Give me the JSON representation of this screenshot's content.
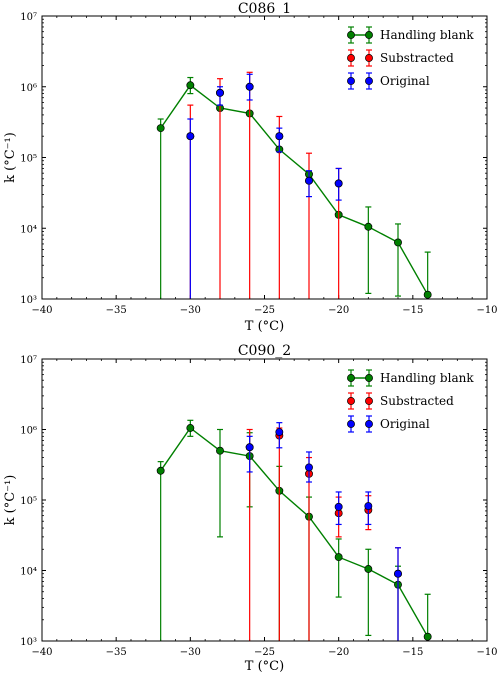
{
  "chart_data": [
    {
      "type": "line",
      "title": "C086_1",
      "xlabel": "T (°C)",
      "ylabel": "k (°C⁻¹)",
      "xlim": [
        -40,
        -10
      ],
      "ylim": [
        1000,
        10000000
      ],
      "y_scale": "log",
      "x_ticks": [
        "−40",
        "−35",
        "−30",
        "−25",
        "−20",
        "−15",
        "−10"
      ],
      "y_ticks": [
        "10³",
        "10⁴",
        "10⁵",
        "10⁶",
        "10⁷"
      ],
      "legend_position": "top-right",
      "series": [
        {
          "name": "Handling blank",
          "color": "#008000",
          "connected": true,
          "points": [
            {
              "x": -32,
              "y": 260000,
              "lo": 1,
              "hi": 350000
            },
            {
              "x": -30,
              "y": 1050000,
              "lo": 800000,
              "hi": 1350000
            },
            {
              "x": -28,
              "y": 500000
            },
            {
              "x": -26,
              "y": 420000
            },
            {
              "x": -24,
              "y": 130000
            },
            {
              "x": -22,
              "y": 58000
            },
            {
              "x": -20,
              "y": 15500
            },
            {
              "x": -18,
              "y": 10500,
              "lo": 1200,
              "hi": 20000
            },
            {
              "x": -16,
              "y": 6300,
              "lo": 1100,
              "hi": 11500
            },
            {
              "x": -14,
              "y": 1150,
              "lo": 1,
              "hi": 4600
            }
          ]
        },
        {
          "name": "Substracted",
          "color": "#ff0000",
          "connected": false,
          "points": [
            {
              "x": -30,
              "y": 200000,
              "lo": 1,
              "hi": 550000
            },
            {
              "x": -28,
              "y": 820000,
              "lo": 1,
              "hi": 1300000
            },
            {
              "x": -26,
              "y": 1000000,
              "lo": 1,
              "hi": 1600000
            },
            {
              "x": -24,
              "y": 200000,
              "lo": 1,
              "hi": 380000
            },
            {
              "x": -22,
              "y": 47000,
              "lo": 1,
              "hi": 115000
            },
            {
              "x": -20,
              "y": 43000,
              "lo": 1,
              "hi": 70000
            }
          ]
        },
        {
          "name": "Original",
          "color": "#0000ff",
          "connected": false,
          "points": [
            {
              "x": -30,
              "y": 200000,
              "lo": 1,
              "hi": 350000
            },
            {
              "x": -28,
              "y": 820000,
              "lo": 550000,
              "hi": 1000000
            },
            {
              "x": -26,
              "y": 1000000,
              "lo": 650000,
              "hi": 1500000
            },
            {
              "x": -24,
              "y": 200000,
              "lo": 120000,
              "hi": 260000
            },
            {
              "x": -22,
              "y": 47000,
              "lo": 28000,
              "hi": 65000
            },
            {
              "x": -20,
              "y": 43000,
              "lo": 25000,
              "hi": 70000
            }
          ]
        }
      ]
    },
    {
      "type": "line",
      "title": "C090_2",
      "xlabel": "T (°C)",
      "ylabel": "k (°C⁻¹)",
      "xlim": [
        -40,
        -10
      ],
      "ylim": [
        1000,
        10000000
      ],
      "y_scale": "log",
      "x_ticks": [
        "−40",
        "−35",
        "−30",
        "−25",
        "−20",
        "−15",
        "−10"
      ],
      "y_ticks": [
        "10³",
        "10⁴",
        "10⁵",
        "10⁶",
        "10⁷"
      ],
      "legend_position": "top-right",
      "series": [
        {
          "name": "Handling blank",
          "color": "#008000",
          "connected": true,
          "points": [
            {
              "x": -32,
              "y": 260000,
              "lo": 1,
              "hi": 350000
            },
            {
              "x": -30,
              "y": 1050000,
              "lo": 800000,
              "hi": 1350000
            },
            {
              "x": -28,
              "y": 500000,
              "lo": 30000,
              "hi": 1000000
            },
            {
              "x": -26,
              "y": 420000,
              "lo": 80000,
              "hi": 900000
            },
            {
              "x": -24,
              "y": 135000,
              "lo": 1,
              "hi": 300000
            },
            {
              "x": -22,
              "y": 58000,
              "lo": 1,
              "hi": 110000
            },
            {
              "x": -20,
              "y": 15500,
              "lo": 4200,
              "hi": 28000
            },
            {
              "x": -18,
              "y": 10500,
              "lo": 1200,
              "hi": 20000
            },
            {
              "x": -16,
              "y": 6300,
              "lo": 1,
              "hi": 11500
            },
            {
              "x": -14,
              "y": 1150,
              "lo": 1,
              "hi": 4600
            }
          ]
        },
        {
          "name": "Substracted",
          "color": "#ff0000",
          "connected": false,
          "points": [
            {
              "x": -26,
              "y": 560000,
              "lo": 1,
              "hi": 1000000
            },
            {
              "x": -24,
              "y": 820000,
              "lo": 1,
              "hi": 1050000
            },
            {
              "x": -22,
              "y": 235000,
              "lo": 1,
              "hi": 400000
            },
            {
              "x": -20,
              "y": 65000,
              "lo": 30000,
              "hi": 110000
            },
            {
              "x": -18,
              "y": 72000,
              "lo": 38000,
              "hi": 115000
            },
            {
              "x": -16,
              "y": 9000,
              "lo": 1,
              "hi": 21000
            }
          ]
        },
        {
          "name": "Original",
          "color": "#0000ff",
          "connected": false,
          "points": [
            {
              "x": -26,
              "y": 560000,
              "lo": 250000,
              "hi": 800000
            },
            {
              "x": -24,
              "y": 920000,
              "lo": 550000,
              "hi": 1250000
            },
            {
              "x": -22,
              "y": 290000,
              "lo": 180000,
              "hi": 480000
            },
            {
              "x": -20,
              "y": 80000,
              "lo": 45000,
              "hi": 130000
            },
            {
              "x": -18,
              "y": 82000,
              "lo": 45000,
              "hi": 130000
            },
            {
              "x": -16,
              "y": 9000,
              "lo": 1,
              "hi": 21000
            }
          ]
        }
      ]
    }
  ]
}
